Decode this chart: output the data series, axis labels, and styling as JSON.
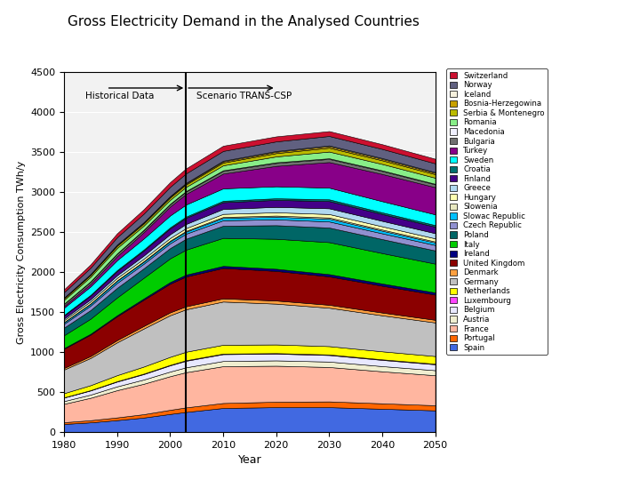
{
  "title": "Gross Electricity Demand in the Analysed Countries",
  "xlabel": "Year",
  "ylabel": "Gross Electricity Consumption TWh/y",
  "years": [
    1980,
    1985,
    1990,
    1995,
    2000,
    2003,
    2010,
    2020,
    2030,
    2040,
    2050
  ],
  "ylim": [
    0,
    4500
  ],
  "vline_x": 2003,
  "hist_label": "Historical Data",
  "scenario_label": "Scenario TRANS-CSP",
  "countries": [
    "Spain",
    "Portugal",
    "France",
    "Austria",
    "Belgium",
    "Luxembourg",
    "Netherlands",
    "Germany",
    "Denmark",
    "United Kingdom",
    "Ireland",
    "Italy",
    "Poland",
    "Czech Republic",
    "Slowac Republic",
    "Slowenia",
    "Hungary",
    "Greece",
    "Finland",
    "Croatia",
    "Sweden",
    "Turkey",
    "Bulgaria",
    "Macedonia",
    "Romania",
    "Serbia & Montenegro",
    "Bosnia-Herzegowina",
    "Iceland",
    "Norway",
    "Switzerland"
  ],
  "colors": [
    "#4169E1",
    "#FF6600",
    "#FFB6A0",
    "#F0EED0",
    "#E8E8FF",
    "#FF44FF",
    "#FFFF00",
    "#C0C0C0",
    "#FFA040",
    "#8B0000",
    "#000080",
    "#00CC00",
    "#006666",
    "#9090D0",
    "#00BFFF",
    "#E8E8C0",
    "#FFFFB0",
    "#B0D8F0",
    "#440088",
    "#007070",
    "#00FFFF",
    "#880088",
    "#707070",
    "#F0F0FF",
    "#88EE88",
    "#BBBB00",
    "#C8A000",
    "#F5F0DC",
    "#606080",
    "#CC1030"
  ],
  "data": {
    "Spain": [
      100,
      120,
      148,
      180,
      225,
      250,
      300,
      310,
      310,
      290,
      270
    ],
    "Portugal": [
      22,
      27,
      34,
      42,
      52,
      57,
      62,
      68,
      72,
      68,
      64
    ],
    "France": [
      230,
      280,
      340,
      380,
      420,
      440,
      460,
      450,
      430,
      400,
      375
    ],
    "Austria": [
      34,
      40,
      48,
      53,
      58,
      61,
      65,
      67,
      68,
      65,
      63
    ],
    "Belgium": [
      44,
      52,
      60,
      68,
      78,
      82,
      86,
      84,
      82,
      78,
      74
    ],
    "Luxembourg": [
      3,
      4,
      5,
      6,
      6,
      7,
      7,
      7,
      7,
      7,
      7
    ],
    "Netherlands": [
      52,
      62,
      75,
      88,
      100,
      106,
      110,
      108,
      104,
      100,
      96
    ],
    "Germany": [
      295,
      340,
      410,
      475,
      520,
      530,
      540,
      510,
      480,
      450,
      420
    ],
    "Denmark": [
      20,
      24,
      28,
      32,
      36,
      38,
      40,
      39,
      37,
      35,
      33
    ],
    "United Kingdom": [
      240,
      268,
      298,
      328,
      358,
      372,
      380,
      370,
      355,
      335,
      315
    ],
    "Ireland": [
      9,
      11,
      13,
      16,
      21,
      24,
      26,
      27,
      28,
      28,
      27
    ],
    "Italy": [
      160,
      188,
      222,
      258,
      296,
      312,
      350,
      375,
      400,
      380,
      360
    ],
    "Poland": [
      95,
      108,
      120,
      118,
      128,
      136,
      152,
      170,
      182,
      175,
      165
    ],
    "Czech Republic": [
      48,
      55,
      62,
      58,
      60,
      63,
      68,
      73,
      76,
      72,
      68
    ],
    "Slowac Republic": [
      18,
      22,
      26,
      24,
      25,
      26,
      30,
      33,
      35,
      33,
      31
    ],
    "Slowenia": [
      5,
      6,
      7,
      8,
      9,
      10,
      12,
      14,
      15,
      14,
      13
    ],
    "Hungary": [
      23,
      26,
      30,
      30,
      32,
      34,
      38,
      41,
      43,
      41,
      39
    ],
    "Greece": [
      20,
      26,
      33,
      40,
      48,
      52,
      62,
      68,
      72,
      68,
      65
    ],
    "Finland": [
      38,
      46,
      53,
      62,
      72,
      77,
      84,
      87,
      90,
      85,
      81
    ],
    "Croatia": [
      7,
      9,
      11,
      13,
      14,
      15,
      18,
      20,
      22,
      21,
      20
    ],
    "Sweden": [
      90,
      105,
      124,
      138,
      148,
      151,
      155,
      150,
      146,
      140,
      134
    ],
    "Turkey": [
      22,
      32,
      50,
      78,
      112,
      132,
      185,
      255,
      320,
      340,
      340
    ],
    "Bulgaria": [
      24,
      27,
      30,
      26,
      28,
      30,
      34,
      37,
      39,
      37,
      35
    ],
    "Macedonia": [
      4,
      5,
      5,
      5,
      6,
      6,
      7,
      8,
      8,
      8,
      7
    ],
    "Romania": [
      48,
      57,
      68,
      52,
      50,
      52,
      62,
      73,
      84,
      80,
      76
    ],
    "Serbia & Montenegro": [
      18,
      22,
      26,
      26,
      28,
      30,
      35,
      42,
      48,
      46,
      44
    ],
    "Bosnia-Herzegowina": [
      7,
      9,
      11,
      11,
      11,
      12,
      14,
      17,
      19,
      18,
      17
    ],
    "Iceland": [
      3,
      4,
      5,
      6,
      7,
      8,
      9,
      9,
      10,
      10,
      9
    ],
    "Norway": [
      68,
      78,
      92,
      106,
      116,
      119,
      122,
      120,
      118,
      114,
      110
    ],
    "Switzerland": [
      36,
      42,
      49,
      55,
      59,
      62,
      65,
      63,
      61,
      59,
      57
    ]
  }
}
